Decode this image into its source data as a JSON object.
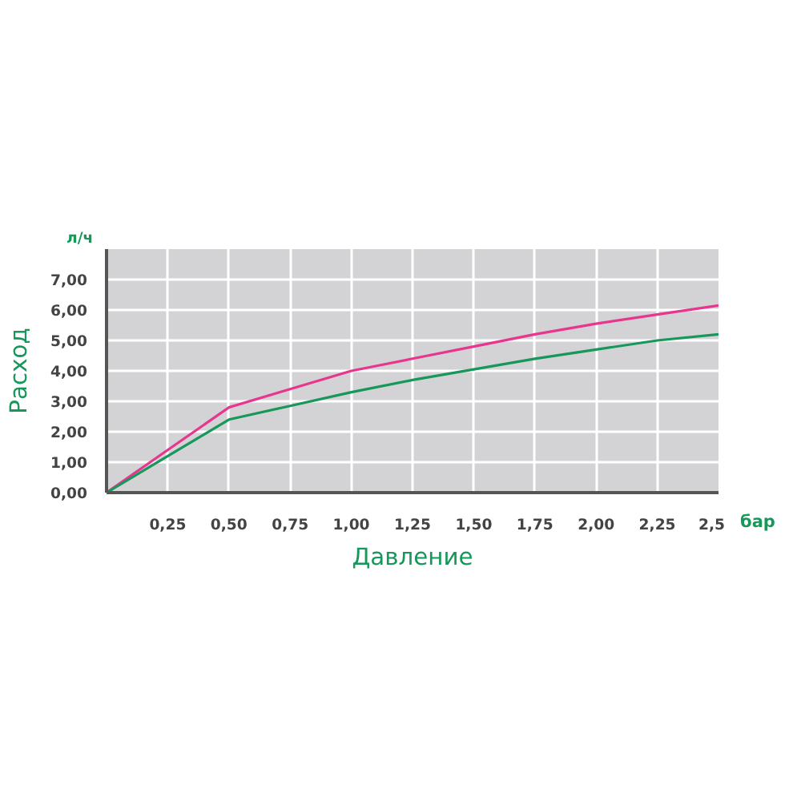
{
  "chart_data": {
    "type": "line",
    "xlabel": "Давление",
    "ylabel": "Расход",
    "annotations": [
      "л/ч",
      "бар"
    ],
    "x": [
      0,
      0.25,
      0.5,
      0.75,
      1.0,
      1.25,
      1.5,
      1.75,
      2.0,
      2.25,
      2.5
    ],
    "series": [
      {
        "color": "#e8368f",
        "values": [
          0,
          1.4,
          2.8,
          3.4,
          4.0,
          4.4,
          4.8,
          5.2,
          5.55,
          5.85,
          6.15
        ]
      },
      {
        "color": "#17975a",
        "values": [
          0,
          1.2,
          2.4,
          2.85,
          3.3,
          3.7,
          4.05,
          4.4,
          4.7,
          5.0,
          5.2
        ]
      }
    ],
    "xlim": [
      0,
      2.5
    ],
    "ylim": [
      0,
      8
    ],
    "xticks": [
      {
        "value": 0.25,
        "label": "0,25"
      },
      {
        "value": 0.5,
        "label": "0,50"
      },
      {
        "value": 0.75,
        "label": "0,75"
      },
      {
        "value": 1.0,
        "label": "1,00"
      },
      {
        "value": 1.25,
        "label": "1,25"
      },
      {
        "value": 1.5,
        "label": "1,50"
      },
      {
        "value": 1.75,
        "label": "1,75"
      },
      {
        "value": 2.0,
        "label": "2,00"
      },
      {
        "value": 2.25,
        "label": "2,25"
      },
      {
        "value": 2.5,
        "label": "2,5"
      }
    ],
    "yticks": [
      {
        "value": 0,
        "label": "0,00"
      },
      {
        "value": 1,
        "label": "1,00"
      },
      {
        "value": 2,
        "label": "2,00"
      },
      {
        "value": 3,
        "label": "3,00"
      },
      {
        "value": 4,
        "label": "4,00"
      },
      {
        "value": 5,
        "label": "5,00"
      },
      {
        "value": 6,
        "label": "6,00"
      },
      {
        "value": 7,
        "label": "7,00"
      }
    ],
    "grid": true,
    "line_style": "solid"
  }
}
